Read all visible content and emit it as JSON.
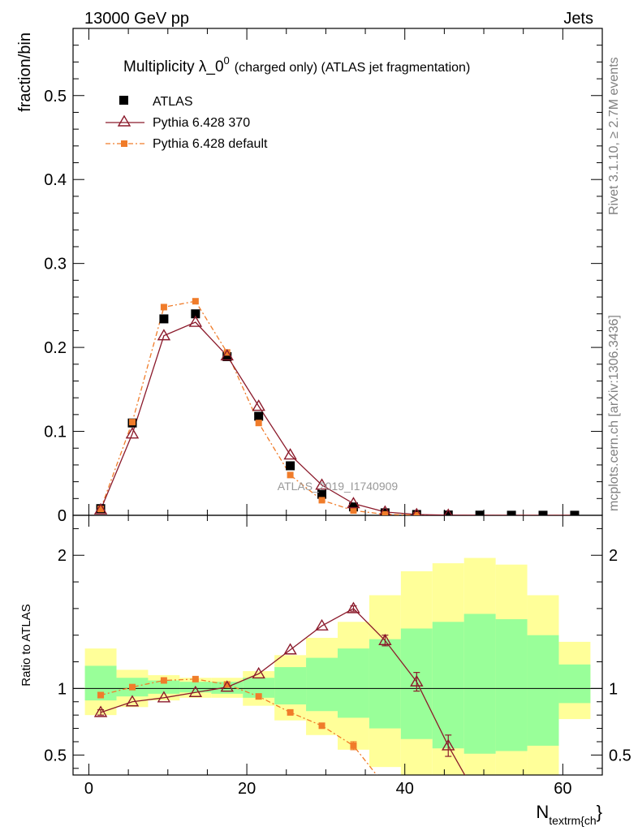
{
  "header": {
    "left": "13000 GeV pp",
    "right": "Jets"
  },
  "side_labels": {
    "rivet": "Rivet 3.1.10, ≥ 2.7M events",
    "mcplots": "mcplots.cern.ch [arXiv:1306.3436]"
  },
  "watermark": "ATLAS_2019_I1740909",
  "chart_data": {
    "type": "scatter",
    "title_main": "Multiplicity λ_0",
    "title_sup": "0",
    "title_rest": "(charged only) (ATLAS jet fragmentation)",
    "xlabel_main": "N",
    "xlabel_sub": "textrm{ch",
    "xlabel_tail": "}",
    "ylabel": "fraction/bin",
    "ratio_ylabel": "Ratio to ATLAS",
    "xlim": [
      -2,
      65
    ],
    "ylim": [
      0,
      0.58
    ],
    "ratio_ylim": [
      0.35,
      2.3
    ],
    "x_ticks": [
      "0",
      "20",
      "40",
      "60"
    ],
    "x_tick_values": [
      0,
      20,
      40,
      60
    ],
    "y_ticks": [
      "0",
      "0.1",
      "0.2",
      "0.3",
      "0.4",
      "0.5"
    ],
    "y_tick_values": [
      0,
      0.1,
      0.2,
      0.3,
      0.4,
      0.5
    ],
    "ratio_ticks": [
      "0.5",
      "1",
      "2"
    ],
    "ratio_tick_values": [
      0.5,
      1,
      2
    ],
    "legend_position": "top-left",
    "x": [
      1.5,
      5.5,
      9.5,
      13.5,
      17.5,
      21.5,
      25.5,
      29.5,
      33.5,
      37.5,
      41.5,
      45.5,
      49.5,
      53.5,
      57.5,
      61.5
    ],
    "bin_edges": [
      -0.5,
      3.5,
      7.5,
      11.5,
      15.5,
      19.5,
      23.5,
      27.5,
      31.5,
      35.5,
      39.5,
      43.5,
      47.5,
      51.5,
      55.5,
      59.5,
      63.5
    ],
    "series": [
      {
        "name": "ATLAS",
        "color": "#000000",
        "marker": "square",
        "values": [
          0.008,
          0.11,
          0.234,
          0.24,
          0.189,
          0.118,
          0.059,
          0.025,
          0.01,
          0.003,
          0.001,
          0.0004,
          0.0002,
          0.0001,
          0.0001,
          0.0001
        ]
      },
      {
        "name": "Pythia 6.428 370",
        "color": "#8b1a2b",
        "marker": "triangle",
        "line": "solid",
        "values": [
          0.0066,
          0.097,
          0.214,
          0.23,
          0.19,
          0.13,
          0.072,
          0.036,
          0.014,
          0.004,
          0.001,
          0.0002,
          5e-05,
          1e-05,
          0.0,
          0.0
        ]
      },
      {
        "name": "Pythia 6.428 default",
        "color": "#f07c2a",
        "marker": "square-small",
        "line": "dashdot",
        "values": [
          0.0076,
          0.111,
          0.248,
          0.255,
          0.194,
          0.11,
          0.048,
          0.018,
          0.0057,
          0.0012,
          0.0002,
          3e-05,
          0.0,
          0.0,
          0.0,
          0.0
        ]
      }
    ],
    "ratio": {
      "pythia370": [
        0.82,
        0.9,
        0.93,
        0.97,
        1.01,
        1.11,
        1.29,
        1.47,
        1.6,
        1.36,
        1.05,
        0.57,
        0.15,
        0.05,
        0.0,
        0.0
      ],
      "pythia370_err": [
        0.02,
        0.01,
        0.01,
        0.01,
        0.01,
        0.01,
        0.01,
        0.01,
        0.02,
        0.04,
        0.07,
        0.08,
        0.05,
        0.02,
        0.0,
        0.0
      ],
      "pythia_default": [
        0.95,
        1.01,
        1.06,
        1.07,
        1.03,
        0.94,
        0.82,
        0.72,
        0.57,
        0.27,
        0.16,
        0.05,
        0.01,
        0.0,
        0.0,
        0.0
      ],
      "pythia_default_err": [
        0.02,
        0.01,
        0.01,
        0.01,
        0.01,
        0.01,
        0.01,
        0.01,
        0.03,
        0.04,
        0.04,
        0.02,
        0.01,
        0.0,
        0.0,
        0.0
      ],
      "green_band": [
        [
          0.91,
          1.17
        ],
        [
          0.94,
          1.08
        ],
        [
          0.96,
          1.06
        ],
        [
          0.97,
          1.05
        ],
        [
          0.96,
          1.05
        ],
        [
          0.93,
          1.08
        ],
        [
          0.88,
          1.16
        ],
        [
          0.83,
          1.23
        ],
        [
          0.78,
          1.3
        ],
        [
          0.7,
          1.37
        ],
        [
          0.62,
          1.45
        ],
        [
          0.55,
          1.5
        ],
        [
          0.51,
          1.56
        ],
        [
          0.53,
          1.52
        ],
        [
          0.57,
          1.4
        ],
        [
          0.89,
          1.18
        ]
      ],
      "yellow_band": [
        [
          0.8,
          1.3
        ],
        [
          0.86,
          1.14
        ],
        [
          0.91,
          1.1
        ],
        [
          0.93,
          1.08
        ],
        [
          0.93,
          1.08
        ],
        [
          0.87,
          1.13
        ],
        [
          0.76,
          1.25
        ],
        [
          0.65,
          1.38
        ],
        [
          0.54,
          1.5
        ],
        [
          0.41,
          1.7
        ],
        [
          0.35,
          1.88
        ],
        [
          0.35,
          1.94
        ],
        [
          0.35,
          1.98
        ],
        [
          0.35,
          1.93
        ],
        [
          0.35,
          1.7
        ],
        [
          0.77,
          1.35
        ]
      ]
    },
    "colors": {
      "green_band": "#99ff99",
      "yellow_band": "#ffff99",
      "reference_line": "#000000",
      "watermark": "#999999",
      "side_text": "#808080"
    }
  }
}
